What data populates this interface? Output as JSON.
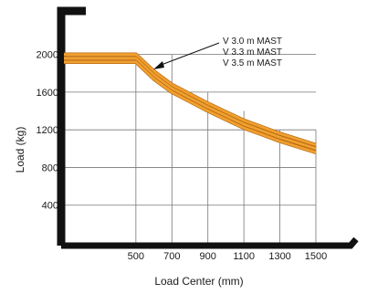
{
  "chart_data": {
    "type": "line",
    "title": "",
    "xlabel": "Load Center (mm)",
    "ylabel": "Load (kg)",
    "xlim": [
      100,
      1500
    ],
    "ylim": [
      0,
      2200
    ],
    "x_ticks": [
      500,
      700,
      900,
      1100,
      1300,
      1500
    ],
    "y_ticks": [
      400,
      800,
      1200,
      1600,
      2000
    ],
    "series": [
      {
        "name": "V 3.0 m MAST",
        "x": [
          100,
          500,
          600,
          700,
          800,
          900,
          1000,
          1100,
          1200,
          1300,
          1400,
          1500
        ],
        "y": [
          2000,
          2000,
          1820,
          1680,
          1580,
          1480,
          1390,
          1300,
          1230,
          1160,
          1100,
          1040
        ]
      },
      {
        "name": "V 3.3 m MAST",
        "x": [
          100,
          500,
          600,
          700,
          800,
          900,
          1000,
          1100,
          1200,
          1300,
          1400,
          1500
        ],
        "y": [
          1960,
          1960,
          1780,
          1640,
          1540,
          1440,
          1350,
          1260,
          1190,
          1120,
          1060,
          1000
        ]
      },
      {
        "name": "V 3.5 m MAST",
        "x": [
          100,
          500,
          600,
          700,
          800,
          900,
          1000,
          1100,
          1200,
          1300,
          1400,
          1500
        ],
        "y": [
          1920,
          1920,
          1740,
          1600,
          1500,
          1400,
          1310,
          1220,
          1150,
          1080,
          1020,
          960
        ]
      }
    ],
    "grid": true,
    "legend": "top-right",
    "colors": {
      "curve": "#f0a030",
      "curve_edge": "#b86a10",
      "axis": "#111111",
      "grid": "#777777"
    }
  }
}
